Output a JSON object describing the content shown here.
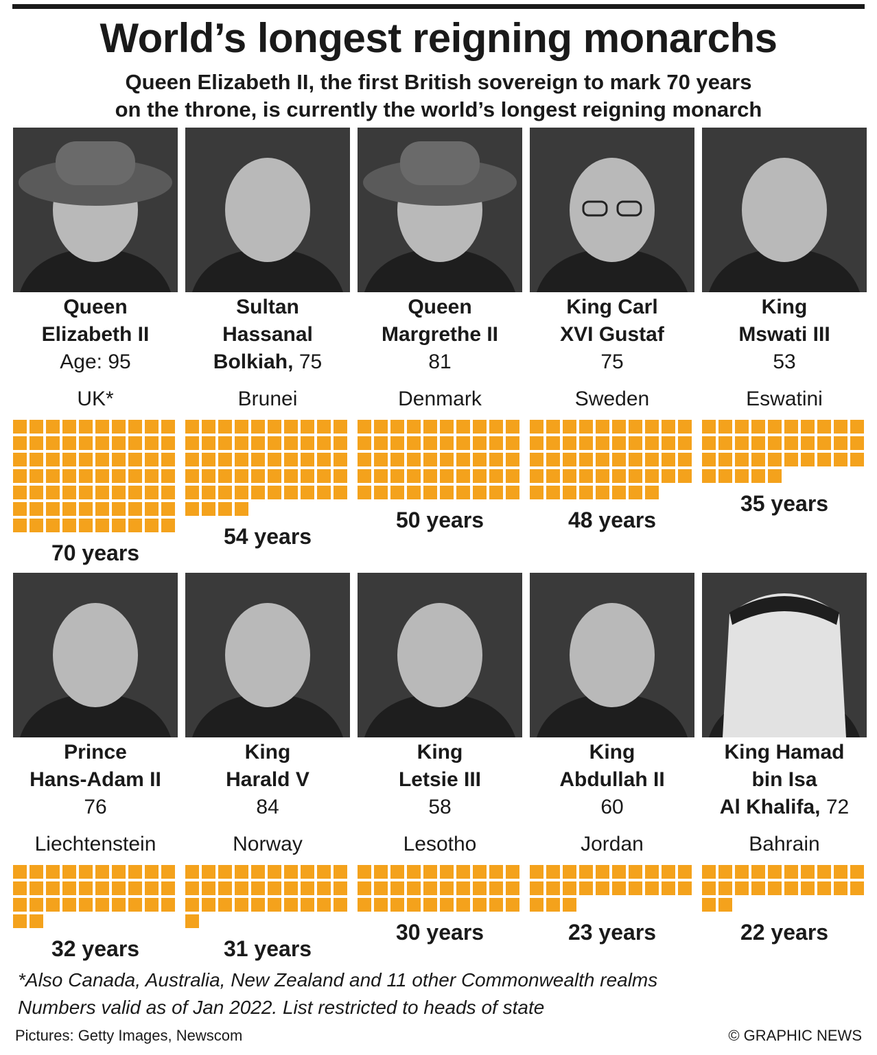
{
  "title": "World’s longest reigning monarchs",
  "subtitle": [
    "Queen Elizabeth II, the first British sovereign to mark 70 years",
    "on the throne, is currently the world’s longest reigning monarch"
  ],
  "chart_data": {
    "type": "bar",
    "categories": [
      "Queen Elizabeth II",
      "Sultan Hassanal Bolkiah",
      "Queen Margrethe II",
      "King Carl XVI Gustaf",
      "King Mswati III",
      "Prince Hans-Adam II",
      "King Harald V",
      "King Letsie III",
      "King Abdullah II",
      "King Hamad bin Isa Al Khalifa"
    ],
    "values": [
      70,
      54,
      50,
      48,
      35,
      32,
      31,
      30,
      23,
      22
    ],
    "unit": "years"
  },
  "monarchs": [
    {
      "name_lines": [
        "Queen",
        "Elizabeth II"
      ],
      "age_label": "Age: 95",
      "country": "UK*",
      "years": 70,
      "years_label": "70 years",
      "photo_icon": "queen-hat-portrait-icon"
    },
    {
      "name_lines": [
        "Sultan",
        "Hassanal"
      ],
      "name_last": "Bolkiah,",
      "age_label": "75",
      "country": "Brunei",
      "years": 54,
      "years_label": "54 years",
      "photo_icon": "sultan-portrait-icon"
    },
    {
      "name_lines": [
        "Queen",
        "Margrethe II"
      ],
      "age_label": "81",
      "country": "Denmark",
      "years": 50,
      "years_label": "50 years",
      "photo_icon": "queen-hat-portrait-icon"
    },
    {
      "name_lines": [
        "King Carl",
        "XVI Gustaf"
      ],
      "age_label": "75",
      "country": "Sweden",
      "years": 48,
      "years_label": "48 years",
      "photo_icon": "king-glasses-portrait-icon"
    },
    {
      "name_lines": [
        "King",
        "Mswati III"
      ],
      "age_label": "53",
      "country": "Eswatini",
      "years": 35,
      "years_label": "35 years",
      "photo_icon": "king-portrait-icon"
    },
    {
      "name_lines": [
        "Prince",
        "Hans-Adam II"
      ],
      "age_label": "76",
      "country": "Liechtenstein",
      "years": 32,
      "years_label": "32 years",
      "photo_icon": "prince-portrait-icon"
    },
    {
      "name_lines": [
        "King",
        "Harald V"
      ],
      "age_label": "84",
      "country": "Norway",
      "years": 31,
      "years_label": "31 years",
      "photo_icon": "king-portrait-icon"
    },
    {
      "name_lines": [
        "King",
        "Letsie III"
      ],
      "age_label": "58",
      "country": "Lesotho",
      "years": 30,
      "years_label": "30 years",
      "photo_icon": "king-portrait-icon"
    },
    {
      "name_lines": [
        "King",
        "Abdullah II"
      ],
      "age_label": "60",
      "country": "Jordan",
      "years": 23,
      "years_label": "23 years",
      "photo_icon": "king-portrait-icon"
    },
    {
      "name_lines": [
        "King Hamad",
        "bin Isa"
      ],
      "name_last": "Al Khalifa,",
      "age_label": "72",
      "country": "Bahrain",
      "years": 22,
      "years_label": "22 years",
      "photo_icon": "king-headdress-portrait-icon"
    }
  ],
  "footnotes": [
    "*Also Canada, Australia, New Zealand and 11 other Commonwealth realms",
    "Numbers valid as of Jan 2022. List restricted to heads of state"
  ],
  "credits": {
    "pictures": "Pictures: Getty Images, Newscom",
    "copyright": "© GRAPHIC NEWS"
  },
  "colors": {
    "square": "#f4a21c",
    "text": "#1a1a1a",
    "photo_bg": "#2e2e2e"
  }
}
